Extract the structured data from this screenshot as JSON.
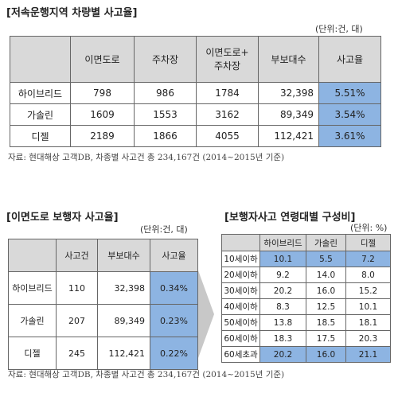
{
  "section1": {
    "title": "[저속운행지역 차량별 사고율]",
    "unit": "(단위:건, 대)",
    "headers": [
      "",
      "이면도로",
      "주차장",
      "이면도로+\n주차장",
      "부보대수",
      "사고율"
    ],
    "rows": [
      {
        "label": "하이브리드",
        "cells": [
          "798",
          "986",
          "1784",
          "32,398",
          "5.51%"
        ]
      },
      {
        "label": "가솔린",
        "cells": [
          "1609",
          "1553",
          "3162",
          "89,349",
          "3.54%"
        ]
      },
      {
        "label": "디젤",
        "cells": [
          "2189",
          "1866",
          "4055",
          "112,421",
          "3.61%"
        ]
      }
    ],
    "source": "자료: 현대해상 고객DB, 차종별 사고건 총 234,167건 (2014~2015년 기준)"
  },
  "section2": {
    "title": "[이면도로 보행자 사고율]",
    "unit": "(단위:건, 대)",
    "headers": [
      "",
      "사고건",
      "부보대수",
      "사고율"
    ],
    "rows": [
      {
        "label": "하이브리드",
        "cells": [
          "110",
          "32,398",
          "0.34%"
        ]
      },
      {
        "label": "가솔린",
        "cells": [
          "207",
          "89,349",
          "0.23%"
        ]
      },
      {
        "label": "디젤",
        "cells": [
          "245",
          "112,421",
          "0.22%"
        ]
      }
    ]
  },
  "section3": {
    "title": "[보행자사고 연령대별 구성비]",
    "unit": "(단위: %)",
    "headers": [
      "",
      "하이브리드",
      "가솔린",
      "디젤"
    ],
    "rows": [
      {
        "label": "10세이하",
        "cells": [
          "10.1",
          "5.5",
          "7.2"
        ],
        "hl": true
      },
      {
        "label": "20세이하",
        "cells": [
          "9.2",
          "14.0",
          "8.0"
        ],
        "hl": false
      },
      {
        "label": "30세이하",
        "cells": [
          "20.2",
          "16.0",
          "15.2"
        ],
        "hl": false
      },
      {
        "label": "40세이하",
        "cells": [
          "8.3",
          "12.5",
          "10.1"
        ],
        "hl": false
      },
      {
        "label": "50세이하",
        "cells": [
          "13.8",
          "18.5",
          "18.1"
        ],
        "hl": false
      },
      {
        "label": "60세이하",
        "cells": [
          "18.3",
          "17.5",
          "20.3"
        ],
        "hl": false
      },
      {
        "label": "60세초과",
        "cells": [
          "20.2",
          "16.0",
          "21.1"
        ],
        "hl": true
      }
    ]
  },
  "footer_source": "자료: 현대해상 고객DB, 차종별 사고건 총 234,167건 (2014~2015년 기준)"
}
